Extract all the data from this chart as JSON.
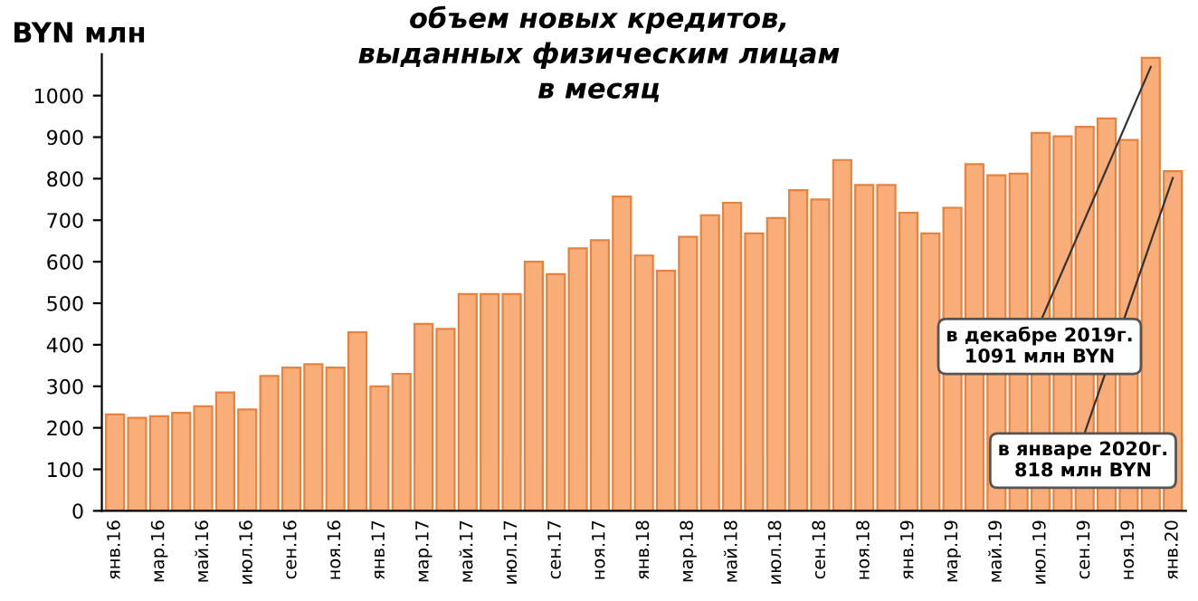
{
  "chart_data": {
    "type": "bar",
    "title": "объем новых кредитов,\nвыданных физическим лицам\nв месяц",
    "ylabel": "BYN млн",
    "categories": [
      "янв.16",
      null,
      "мар.16",
      null,
      "май.16",
      null,
      "июл.16",
      null,
      "сен.16",
      null,
      "ноя.16",
      null,
      "янв.17",
      null,
      "мар.17",
      null,
      "май.17",
      null,
      "июл.17",
      null,
      "сен.17",
      null,
      "ноя.17",
      null,
      "янв.18",
      null,
      "мар.18",
      null,
      "май.18",
      null,
      "июл.18",
      null,
      "сен.18",
      null,
      "ноя.18",
      null,
      "янв.19",
      null,
      "мар.19",
      null,
      "май.19",
      null,
      "июл.19",
      null,
      "сен.19",
      null,
      "ноя.19",
      null,
      "янв.20"
    ],
    "values": [
      232,
      224,
      228,
      236,
      252,
      285,
      244,
      325,
      345,
      353,
      345,
      430,
      300,
      330,
      450,
      438,
      522,
      522,
      522,
      600,
      570,
      632,
      652,
      757,
      615,
      578,
      660,
      712,
      742,
      668,
      705,
      772,
      750,
      845,
      785,
      785,
      718,
      668,
      730,
      835,
      808,
      812,
      910,
      902,
      925,
      945,
      893,
      1091,
      818
    ],
    "color": "#f9ad78",
    "ylim": [
      0,
      1100
    ],
    "yticks": [
      0,
      100,
      200,
      300,
      400,
      500,
      600,
      700,
      800,
      900,
      1000
    ],
    "grid": false,
    "annotations": [
      "в декабре 2019г.\n1091 млн BYN",
      {
        "text": "в январе 2020г.\n818 млн BYN",
        "x": "янв.20",
        "y": 818
      }
    ]
  }
}
